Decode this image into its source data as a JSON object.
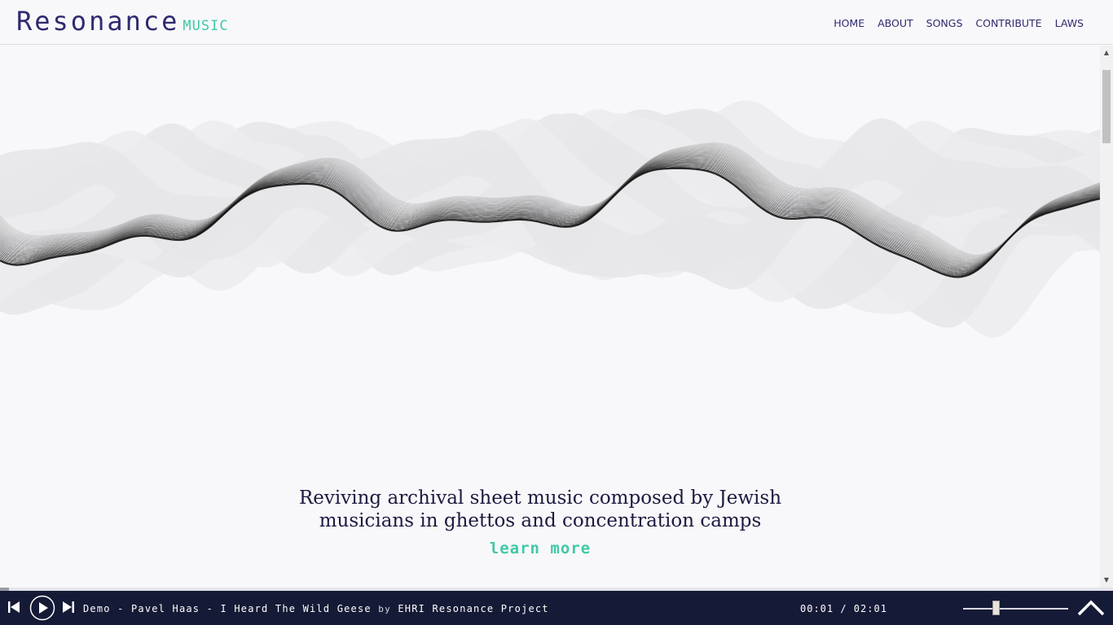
{
  "header": {
    "logo_main": "Resonance",
    "logo_sub": "MUSIC",
    "nav": [
      "HOME",
      "ABOUT",
      "SONGS",
      "CONTRIBUTE",
      "LAWS"
    ]
  },
  "hero": {
    "tagline_line1": "Reviving archival sheet music composed by Jewish",
    "tagline_line2": "musicians in ghettos and concentration camps",
    "learn_more": "learn more"
  },
  "player": {
    "track_title": "Demo - Pavel Haas - I Heard The Wild Geese",
    "by_label": "by",
    "artist": "EHRI Resonance Project",
    "time": "00:01 / 02:01",
    "progress_fraction": 0.008,
    "volume_fraction": 0.31,
    "icons": [
      "skip-back-icon",
      "play-icon",
      "skip-forward-icon",
      "chevron-up-icon"
    ]
  },
  "colors": {
    "brand_dark": "#2e2a6e",
    "accent": "#3fc9a6",
    "player_bg": "#151a36"
  }
}
